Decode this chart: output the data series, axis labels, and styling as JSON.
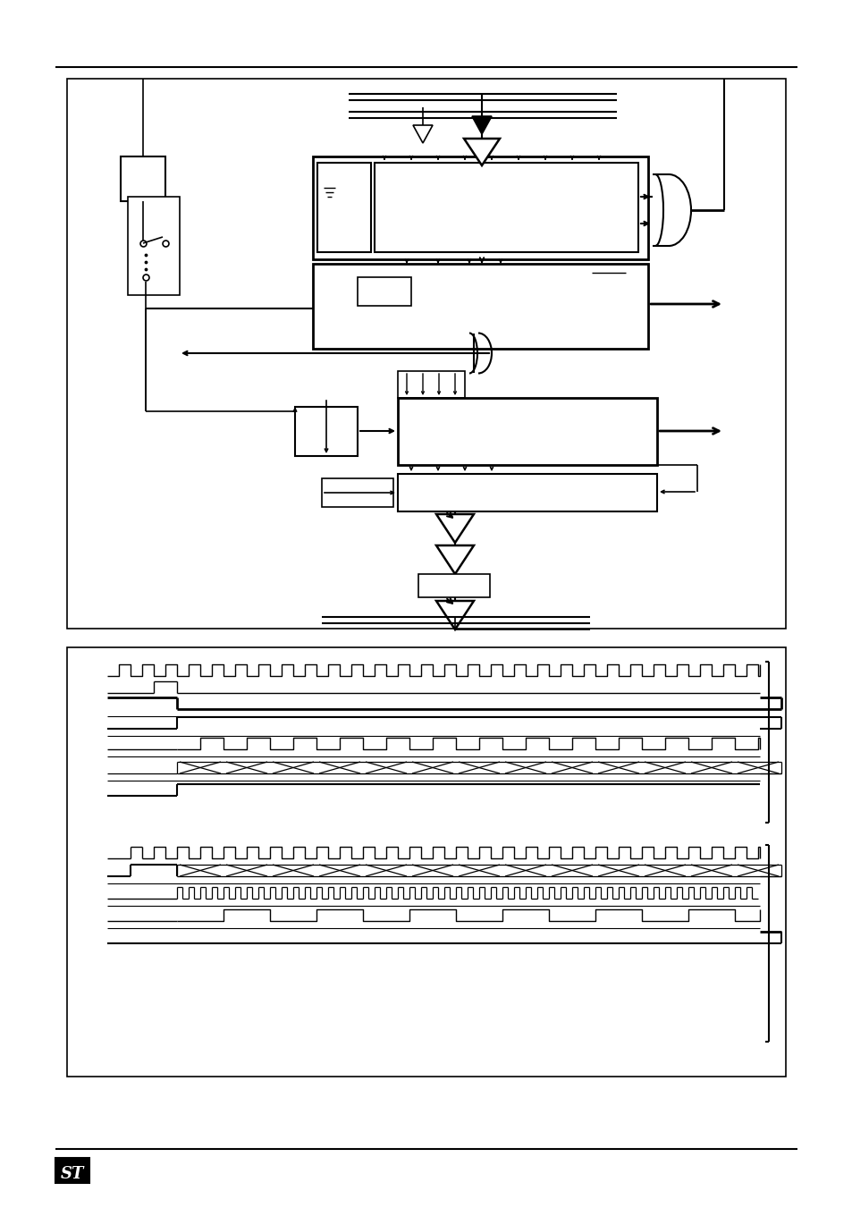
{
  "fig_width": 9.54,
  "fig_height": 13.51,
  "dpi": 100,
  "bg_color": "#ffffff"
}
